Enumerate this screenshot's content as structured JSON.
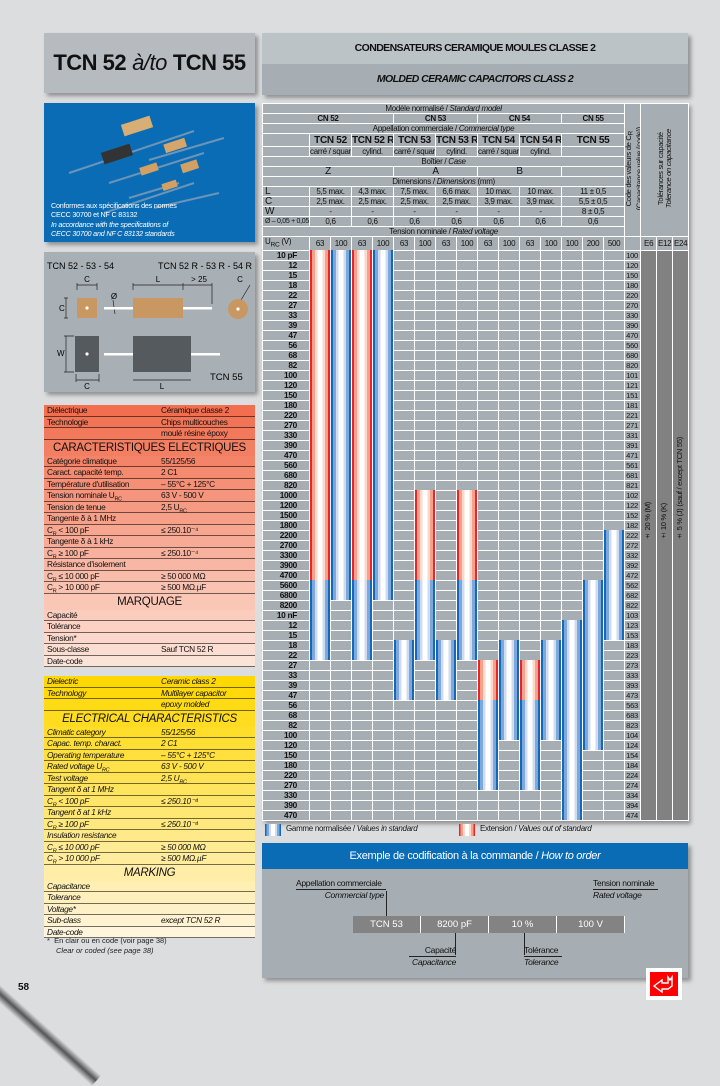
{
  "title": {
    "part1": "TCN 52",
    "connector": "à/to",
    "part2": "TCN 55"
  },
  "header": {
    "fr": "CONDENSATEURS CERAMIQUE MOULES CLASSE 2",
    "en": "MOLDED CERAMIC CAPACITORS CLASS 2"
  },
  "photo_caption": {
    "fr_line1": "Conformes aux spécifications des normes",
    "fr_line2": "CECC 30700 et NF C 83132",
    "en_line1": "In accordance with the specifications of",
    "en_line2": "CECC 30700 and NF C 83132 standards"
  },
  "diagram": {
    "left_title": "TCN 52 - 53 - 54",
    "right_title": "TCN 52 R - 53 R - 54 R",
    "tcn55_label": "TCN 55",
    "dim_c": "C",
    "dim_l": "L",
    "dim_w": "W",
    "dim_lead": "> 25",
    "dim_dia": "Ø"
  },
  "spec_fr": {
    "rows": [
      {
        "label": "Diélectrique",
        "value": "Céramique classe 2"
      },
      {
        "label": "Technologie",
        "value": "Chips multicouches"
      },
      {
        "label": "",
        "value": "moulé résine époxy"
      },
      {
        "heading": "CARACTERISTIQUES ELECTRIQUES"
      },
      {
        "label": "Catégorie climatique",
        "value": "55/125/56"
      },
      {
        "label": "Caract. capacité temp.",
        "value": "2 C1"
      },
      {
        "label": "Température d'utilisation",
        "value": "– 55°C + 125°C"
      },
      {
        "label": "Tension nominale U",
        "label_sub": "RC",
        "value": "63 V - 500 V"
      },
      {
        "label": "Tension de tenue",
        "value": "2,5 U",
        "value_sub": "RC"
      },
      {
        "label": "Tangente δ à 1 MHz",
        "value": ""
      },
      {
        "label": "C",
        "label_sub": "R",
        "label_rest": " < 100 pF",
        "value": "≤ 250.10⁻⁴"
      },
      {
        "label": "Tangente δ à 1 kHz",
        "value": ""
      },
      {
        "label": "C",
        "label_sub": "R",
        "label_rest": " ≥ 100 pF",
        "value": "≤ 250.10⁻⁴"
      },
      {
        "label": "Résistance d'isolement",
        "value": ""
      },
      {
        "label": "C",
        "label_sub": "R",
        "label_rest": " ≤ 10 000 pF",
        "value": "≥ 50 000 MΩ"
      },
      {
        "label": "C",
        "label_sub": "R",
        "label_rest": " > 10 000 pF",
        "value": "≥ 500 MΩ.µF"
      },
      {
        "heading": "MARQUAGE"
      },
      {
        "label": "Capacité",
        "value": ""
      },
      {
        "label": "Tolérance",
        "value": ""
      },
      {
        "label": "Tension*",
        "value": ""
      },
      {
        "label": "Sous-classe",
        "value": "Sauf TCN 52 R"
      },
      {
        "label": "Date-code",
        "value": ""
      }
    ],
    "color_top": "#f26e4f",
    "color_bottom": "#fce3d8"
  },
  "spec_en": {
    "rows": [
      {
        "label": "Dielectric",
        "value": "Ceramic class 2"
      },
      {
        "label": "Technology",
        "value": "Multilayer capacitor"
      },
      {
        "label": "",
        "value": "epoxy molded"
      },
      {
        "heading": "ELECTRICAL CHARACTERISTICS"
      },
      {
        "label": "Climatic category",
        "value": "55/125/56"
      },
      {
        "label": "Capac. temp. charact.",
        "value": "2 C1"
      },
      {
        "label": "Operating temperature",
        "value": "– 55°C + 125°C"
      },
      {
        "label": "Rated voltage U",
        "label_sub": "RC",
        "value": "63 V - 500 V"
      },
      {
        "label": "Test voltage",
        "value": "2,5 U",
        "value_sub": "RC"
      },
      {
        "label": "Tangent δ at 1 MHz",
        "value": ""
      },
      {
        "label": "C",
        "label_sub": "R",
        "label_rest": " < 100 pF",
        "value": "≤ 250.10⁻⁴"
      },
      {
        "label": "Tangent δ at 1 kHz",
        "value": ""
      },
      {
        "label": "C",
        "label_sub": "R",
        "label_rest": " ≥ 100 pF",
        "value": "≤ 250.10⁻⁴"
      },
      {
        "label": "Insulation resistance",
        "value": ""
      },
      {
        "label": "C",
        "label_sub": "R",
        "label_rest": " ≤ 10 000 pF",
        "value": "≥ 50 000 MΩ"
      },
      {
        "label": "C",
        "label_sub": "R",
        "label_rest": " > 10 000 pF",
        "value": "≥ 500 MΩ.µF"
      },
      {
        "heading": "MARKING"
      },
      {
        "label": "Capacitance",
        "value": ""
      },
      {
        "label": "Tolerance",
        "value": ""
      },
      {
        "label": "Voltage*",
        "value": ""
      },
      {
        "label": "Sub-class",
        "value": "except TCN 52 R"
      },
      {
        "label": "Date-code",
        "value": ""
      }
    ],
    "color_top": "#ffd800",
    "color_bottom": "#fff4dc"
  },
  "footnote": {
    "fr": "En clair ou en code (voir page 38)",
    "en": "Clear or coded (see page 38)",
    "marker": "*"
  },
  "page_number": "58",
  "table": {
    "standard_model": "Modèle normalisé / ",
    "standard_model_en": "Standard model",
    "models": [
      "CN 52",
      "CN 53",
      "CN 54",
      "CN 55"
    ],
    "commercial_type": "Appellation commerciale / ",
    "commercial_type_en": "Commercial type",
    "types": [
      "TCN 52",
      "TCN 52 R",
      "TCN 53",
      "TCN 53 R",
      "TCN 54",
      "TCN 54 R",
      "TCN 55"
    ],
    "shapes": [
      "carré / square",
      "cylind.",
      "carré / square",
      "cylind.",
      "carré / square",
      "cylind.",
      ""
    ],
    "case_label": "Boîtier / ",
    "case_label_en": "Case",
    "cases": [
      "Z",
      "A",
      "B",
      ""
    ],
    "dimensions_label": "Dimensions / ",
    "dimensions_label_en": "Dimensions",
    "dimensions_unit": " (mm)",
    "dimension_rows": [
      {
        "label": "L",
        "values": [
          "5,5 max.",
          "4,3 max.",
          "7,5 max.",
          "6,6 max.",
          "10 max.",
          "10 max.",
          "11 ± 0,5"
        ]
      },
      {
        "label": "C",
        "values": [
          "2,5 max.",
          "2,5 max.",
          "2,5 max.",
          "2,5 max.",
          "3,9 max.",
          "3,9 max.",
          "5,5 ± 0,5"
        ]
      },
      {
        "label": "W",
        "values": [
          "-",
          "-",
          "-",
          "-",
          "-",
          "-",
          "8 ± 0,5"
        ]
      },
      {
        "label": "Ø – 0,05 + 0,05",
        "values": [
          "0,6",
          "0,6",
          "0,6",
          "0,6",
          "0,6",
          "0,6",
          "0,6"
        ]
      }
    ],
    "rated_voltage_label": "Tension nominale / ",
    "rated_voltage_label_en": "Rated voltage",
    "ur_label": "U",
    "ur_sub": "RC",
    "ur_unit": " (V)",
    "voltages": [
      "63",
      "100",
      "63",
      "100",
      "63",
      "100",
      "63",
      "100",
      "63",
      "100",
      "63",
      "100",
      "100",
      "200",
      "500"
    ],
    "code_header": "Code des valeurs de C",
    "code_header_sub": "R",
    "code_header_en": "(Capacitance value (code))",
    "tolerance_header": "Tolérances sur capacité",
    "tolerance_header_en": "Tolerance on capacitance",
    "series": [
      "E6",
      "E12",
      "E24"
    ],
    "tolerances": [
      "± 20 % (M)",
      "± 10 % (K)",
      "± 5 % (J) (sauf / except TCN 55)"
    ]
  },
  "chart_data": {
    "type": "table",
    "rows": [
      {
        "label": "10 pF",
        "pf": 10,
        "code": "100"
      },
      {
        "label": "12",
        "pf": 12,
        "code": "120"
      },
      {
        "label": "15",
        "pf": 15,
        "code": "150"
      },
      {
        "label": "18",
        "pf": 18,
        "code": "180"
      },
      {
        "label": "22",
        "pf": 22,
        "code": "220"
      },
      {
        "label": "27",
        "pf": 27,
        "code": "270"
      },
      {
        "label": "33",
        "pf": 33,
        "code": "330"
      },
      {
        "label": "39",
        "pf": 39,
        "code": "390"
      },
      {
        "label": "47",
        "pf": 47,
        "code": "470"
      },
      {
        "label": "56",
        "pf": 56,
        "code": "560"
      },
      {
        "label": "68",
        "pf": 68,
        "code": "680"
      },
      {
        "label": "82",
        "pf": 82,
        "code": "820"
      },
      {
        "label": "100",
        "pf": 100,
        "code": "101"
      },
      {
        "label": "120",
        "pf": 120,
        "code": "121"
      },
      {
        "label": "150",
        "pf": 150,
        "code": "151"
      },
      {
        "label": "180",
        "pf": 180,
        "code": "181"
      },
      {
        "label": "220",
        "pf": 220,
        "code": "221"
      },
      {
        "label": "270",
        "pf": 270,
        "code": "271"
      },
      {
        "label": "330",
        "pf": 330,
        "code": "331"
      },
      {
        "label": "390",
        "pf": 390,
        "code": "391"
      },
      {
        "label": "470",
        "pf": 470,
        "code": "471"
      },
      {
        "label": "560",
        "pf": 560,
        "code": "561"
      },
      {
        "label": "680",
        "pf": 680,
        "code": "681"
      },
      {
        "label": "820",
        "pf": 820,
        "code": "821"
      },
      {
        "label": "1000",
        "pf": 1000,
        "code": "102"
      },
      {
        "label": "1200",
        "pf": 1200,
        "code": "122"
      },
      {
        "label": "1500",
        "pf": 1500,
        "code": "152"
      },
      {
        "label": "1800",
        "pf": 1800,
        "code": "182"
      },
      {
        "label": "2200",
        "pf": 2200,
        "code": "222"
      },
      {
        "label": "2700",
        "pf": 2700,
        "code": "272"
      },
      {
        "label": "3300",
        "pf": 3300,
        "code": "332"
      },
      {
        "label": "3900",
        "pf": 3900,
        "code": "392"
      },
      {
        "label": "4700",
        "pf": 4700,
        "code": "472"
      },
      {
        "label": "5600",
        "pf": 5600,
        "code": "562"
      },
      {
        "label": "6800",
        "pf": 6800,
        "code": "682"
      },
      {
        "label": "8200",
        "pf": 8200,
        "code": "822"
      },
      {
        "label": "10 nF",
        "pf": 10000,
        "code": "103"
      },
      {
        "label": "12",
        "pf": 12000,
        "code": "123"
      },
      {
        "label": "15",
        "pf": 15000,
        "code": "153"
      },
      {
        "label": "18",
        "pf": 18000,
        "code": "183"
      },
      {
        "label": "22",
        "pf": 22000,
        "code": "223"
      },
      {
        "label": "27",
        "pf": 27000,
        "code": "273"
      },
      {
        "label": "33",
        "pf": 33000,
        "code": "333"
      },
      {
        "label": "39",
        "pf": 39000,
        "code": "393"
      },
      {
        "label": "47",
        "pf": 47000,
        "code": "473"
      },
      {
        "label": "56",
        "pf": 56000,
        "code": "563"
      },
      {
        "label": "68",
        "pf": 68000,
        "code": "683"
      },
      {
        "label": "82",
        "pf": 82000,
        "code": "823"
      },
      {
        "label": "100",
        "pf": 100000,
        "code": "104"
      },
      {
        "label": "120",
        "pf": 120000,
        "code": "124"
      },
      {
        "label": "150",
        "pf": 150000,
        "code": "154"
      },
      {
        "label": "180",
        "pf": 180000,
        "code": "184"
      },
      {
        "label": "220",
        "pf": 220000,
        "code": "224"
      },
      {
        "label": "270",
        "pf": 270000,
        "code": "274"
      },
      {
        "label": "330",
        "pf": 330000,
        "code": "334"
      },
      {
        "label": "390",
        "pf": 390000,
        "code": "394"
      },
      {
        "label": "470",
        "pf": 470000,
        "code": "474"
      }
    ],
    "ranges": [
      {
        "type": "TCN 52",
        "voltage": 63,
        "extension_pf": [
          10,
          4700
        ],
        "standard_pf": [
          5600,
          22000
        ]
      },
      {
        "type": "TCN 52",
        "voltage": 100,
        "standard_pf": [
          10,
          6800
        ]
      },
      {
        "type": "TCN 52 R",
        "voltage": 63,
        "extension_pf": [
          10,
          4700
        ],
        "standard_pf": [
          5600,
          22000
        ]
      },
      {
        "type": "TCN 52 R",
        "voltage": 100,
        "standard_pf": [
          10,
          6800
        ]
      },
      {
        "type": "TCN 53",
        "voltage": 63,
        "standard_pf": [
          18000,
          47000
        ]
      },
      {
        "type": "TCN 53",
        "voltage": 100,
        "extension_pf": [
          1000,
          4700
        ],
        "standard_pf": [
          5600,
          22000
        ]
      },
      {
        "type": "TCN 53 R",
        "voltage": 63,
        "standard_pf": [
          18000,
          47000
        ]
      },
      {
        "type": "TCN 53 R",
        "voltage": 100,
        "extension_pf": [
          1000,
          4700
        ],
        "standard_pf": [
          5600,
          22000
        ]
      },
      {
        "type": "TCN 54",
        "voltage": 63,
        "extension_pf": [
          27000,
          47000
        ],
        "standard_pf": [
          56000,
          270000
        ]
      },
      {
        "type": "TCN 54",
        "voltage": 100,
        "standard_pf": [
          18000,
          100000
        ]
      },
      {
        "type": "TCN 54 R",
        "voltage": 63,
        "extension_pf": [
          27000,
          47000
        ],
        "standard_pf": [
          56000,
          270000
        ]
      },
      {
        "type": "TCN 54 R",
        "voltage": 100,
        "standard_pf": [
          18000,
          100000
        ]
      },
      {
        "type": "TCN 55",
        "voltage": 100,
        "standard_pf": [
          12000,
          470000
        ]
      },
      {
        "type": "TCN 55",
        "voltage": 200,
        "standard_pf": [
          5600,
          120000
        ]
      },
      {
        "type": "TCN 55",
        "voltage": 500,
        "standard_pf": [
          2200,
          15000
        ]
      }
    ],
    "standard_color": "#1468b8",
    "extension_color": "#e8252a"
  },
  "legend": {
    "standard_fr": "Gamme normalisée / ",
    "standard_en": "Values in standard",
    "extension_fr": "Extension / ",
    "extension_en": "Values out of standard"
  },
  "order": {
    "title_fr": "Exemple de codification à la commande / ",
    "title_en": "How to order",
    "commercial_fr": "Appellation commerciale",
    "commercial_en": "Commercial type",
    "voltage_fr": "Tension nominale",
    "voltage_en": "Rated voltage",
    "capacitance_fr": "Capacité",
    "capacitance_en": "Capacitance",
    "tolerance_fr": "Tolérance",
    "tolerance_en": "Tolerance",
    "example": [
      "TCN 53",
      "8200 pF",
      "10 %",
      "100 V"
    ]
  },
  "logo": {
    "icon": "red-arrow-logo",
    "color": "#ff0000"
  }
}
